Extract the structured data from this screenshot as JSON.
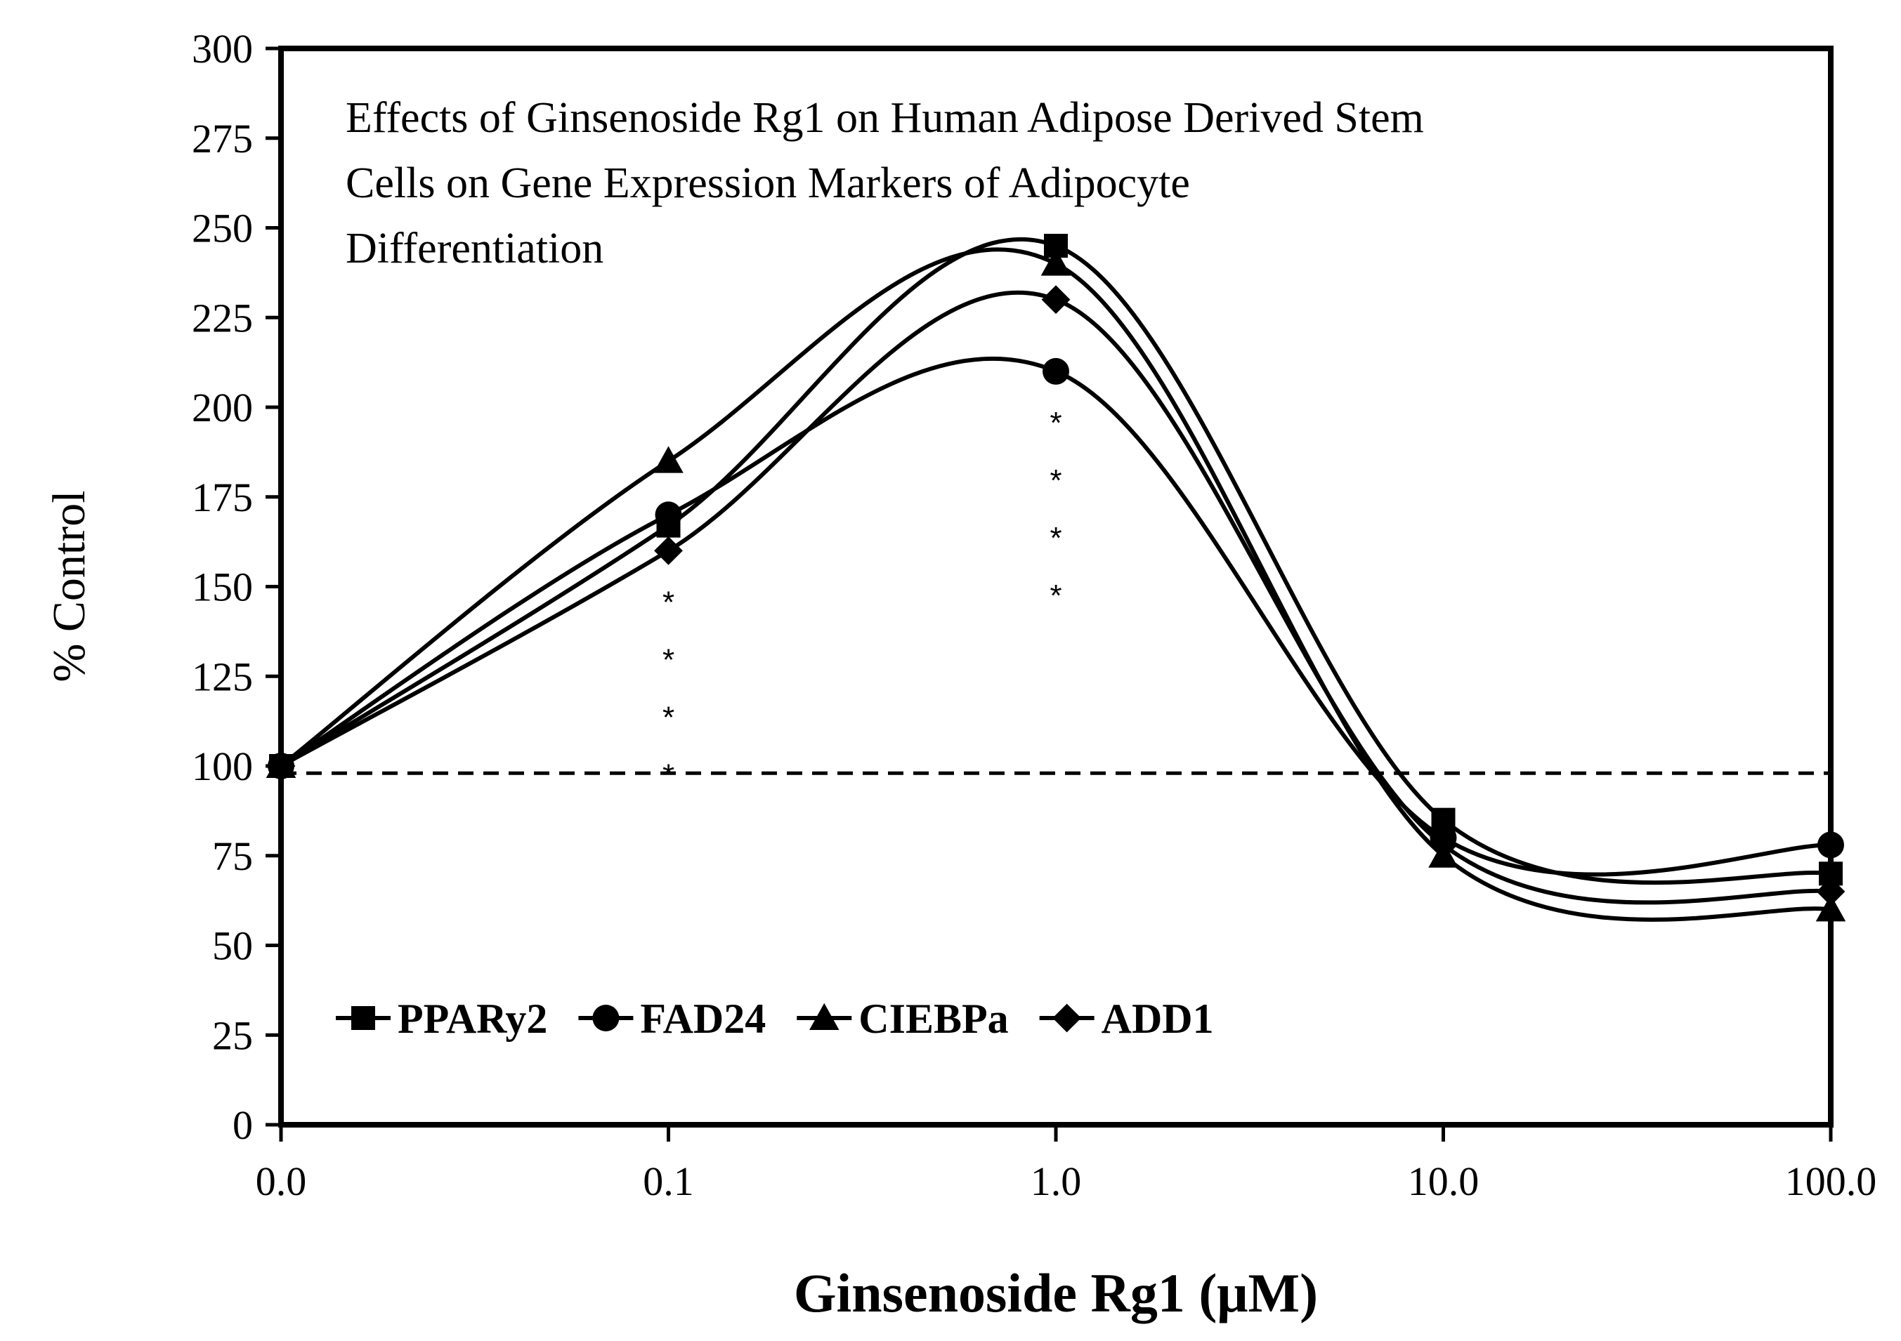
{
  "chart_data": {
    "type": "line",
    "title_lines": [
      "Effects of Ginsenoside Rg1 on Human Adipose Derived Stem",
      "Cells on Gene Expression Markers of Adipocyte",
      "Differentiation"
    ],
    "xlabel": "Ginsenoside Rg1 (μM)",
    "ylabel": "% Control",
    "x": [
      0.01,
      0.1,
      1.0,
      10.0,
      100.0
    ],
    "x_tick_labels": [
      "0.0",
      "0.1",
      "1.0",
      "10.0",
      "100.0"
    ],
    "x_scale": "log",
    "ylim": [
      0,
      300
    ],
    "y_ticks": [
      0,
      25,
      50,
      75,
      100,
      125,
      150,
      175,
      200,
      225,
      250,
      275,
      300
    ],
    "reference_line": 98,
    "series": [
      {
        "name": "PPARy2",
        "marker": "square",
        "values": [
          100,
          167,
          245,
          85,
          70
        ]
      },
      {
        "name": "FAD24",
        "marker": "circle",
        "values": [
          100,
          170,
          210,
          80,
          78
        ]
      },
      {
        "name": "CIEBPa",
        "marker": "triangle",
        "values": [
          100,
          185,
          240,
          75,
          60
        ]
      },
      {
        "name": "ADD1",
        "marker": "diamond",
        "values": [
          100,
          160,
          230,
          78,
          65
        ]
      }
    ],
    "annotations": [
      {
        "x": 0.1,
        "text": "*",
        "count": 4,
        "position": "below-points"
      },
      {
        "x": 1.0,
        "text": "*",
        "count": 4,
        "position": "below-points"
      }
    ],
    "legend_position": "bottom-left"
  }
}
